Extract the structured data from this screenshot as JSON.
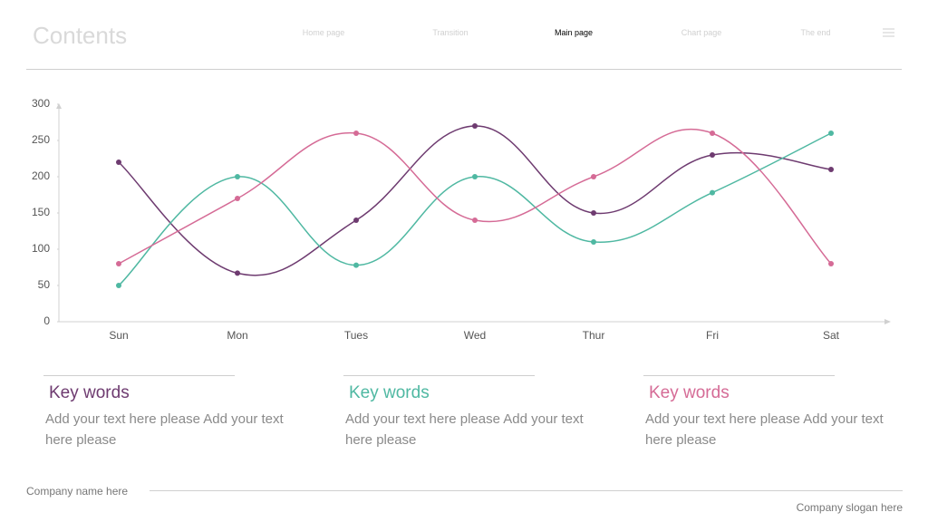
{
  "header": {
    "title": "Contents",
    "nav": [
      "Home  page",
      "Transition",
      "Main page",
      "Chart page",
      "The end"
    ]
  },
  "chart_data": {
    "type": "line",
    "categories": [
      "Sun",
      "Mon",
      "Tues",
      "Wed",
      "Thur",
      "Fri",
      "Sat"
    ],
    "series": [
      {
        "color": "#6e3b70",
        "values": [
          220,
          67,
          140,
          270,
          150,
          230,
          210
        ]
      },
      {
        "color": "#4fb8a2",
        "values": [
          50,
          200,
          78,
          200,
          110,
          178,
          260
        ]
      },
      {
        "color": "#d56b96",
        "values": [
          80,
          170,
          260,
          140,
          200,
          260,
          80
        ]
      }
    ],
    "ylim": [
      0,
      300
    ],
    "yticks": [
      0,
      50,
      100,
      150,
      200,
      250,
      300
    ],
    "grid": false
  },
  "cards": [
    {
      "title": "Key words",
      "text": "Add your text here please Add your text here please"
    },
    {
      "title": "Key words",
      "text": "Add your text here please Add your text here please"
    },
    {
      "title": "Key words",
      "text": "Add your text here please Add your text here please"
    }
  ],
  "footer": {
    "company": "Company name here",
    "slogan": "Company slogan here"
  }
}
